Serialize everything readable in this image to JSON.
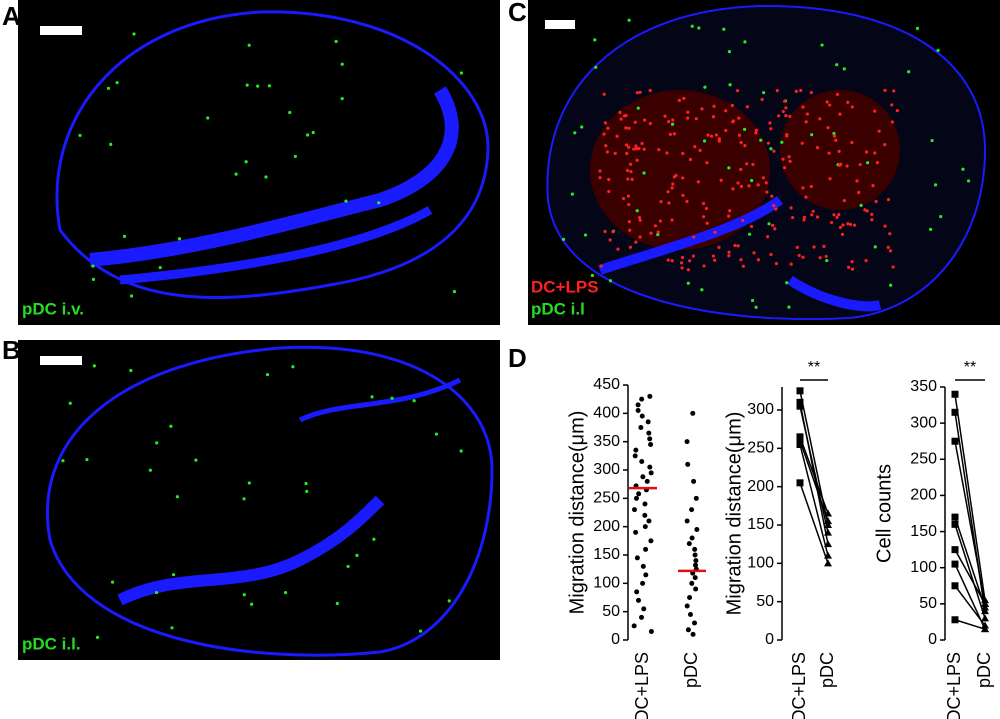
{
  "figure": {
    "panel_labels": [
      "A",
      "B",
      "C",
      "D"
    ]
  },
  "images": [
    {
      "captions": [
        "pDC i.v."
      ],
      "caption_colors": [
        "#22dd22"
      ]
    },
    {
      "captions": [
        "pDC i.l."
      ],
      "caption_colors": [
        "#22dd22"
      ]
    },
    {
      "captions": [
        "DC+LPS",
        "pDC i.l"
      ],
      "caption_colors": [
        "#ff2020",
        "#22dd22"
      ]
    }
  ],
  "chart_data": [
    {
      "type": "dotplot",
      "ylabel": "Migration distance(μm)",
      "categories": [
        "DC+LPS",
        "pDC"
      ],
      "points": [
        [
          15,
          25,
          40,
          55,
          70,
          85,
          100,
          115,
          130,
          145,
          160,
          175,
          190,
          200,
          210,
          220,
          230,
          240,
          250,
          258,
          265,
          272,
          280,
          288,
          295,
          305,
          315,
          325,
          335,
          345,
          355,
          365,
          375,
          385,
          395,
          405,
          415,
          425,
          430
        ],
        [
          10,
          18,
          30,
          45,
          60,
          75,
          90,
          100,
          110,
          118,
          125,
          132,
          140,
          150,
          160,
          170,
          180,
          195,
          210,
          230,
          250,
          280,
          310,
          350,
          400
        ]
      ],
      "means": [
        268,
        122
      ],
      "color": "#000000",
      "mean_color": "#e01010",
      "ylim": [
        0,
        450
      ],
      "yticks": [
        0,
        50,
        100,
        150,
        200,
        250,
        300,
        350,
        400,
        450
      ]
    },
    {
      "type": "paired",
      "ylabel": "Migration distance(μm)",
      "categories": [
        "DC+LPS",
        "pDC"
      ],
      "pairs": [
        [
          325,
          150
        ],
        [
          310,
          125
        ],
        [
          305,
          140
        ],
        [
          265,
          165
        ],
        [
          260,
          155
        ],
        [
          255,
          110
        ],
        [
          205,
          100
        ]
      ],
      "annotation": "**",
      "color": "#000000",
      "ylim": [
        0,
        330
      ],
      "yticks": [
        0,
        50,
        100,
        150,
        200,
        250,
        300
      ]
    },
    {
      "type": "paired",
      "ylabel": "Cell counts",
      "categories": [
        "DC+LPS",
        "pDC"
      ],
      "pairs": [
        [
          340,
          55
        ],
        [
          315,
          40
        ],
        [
          275,
          50
        ],
        [
          170,
          45
        ],
        [
          160,
          30
        ],
        [
          125,
          50
        ],
        [
          105,
          15
        ],
        [
          75,
          20
        ],
        [
          28,
          15
        ]
      ],
      "annotation": "**",
      "color": "#000000",
      "ylim": [
        0,
        350
      ],
      "yticks": [
        0,
        50,
        100,
        150,
        200,
        250,
        300,
        350
      ]
    }
  ]
}
